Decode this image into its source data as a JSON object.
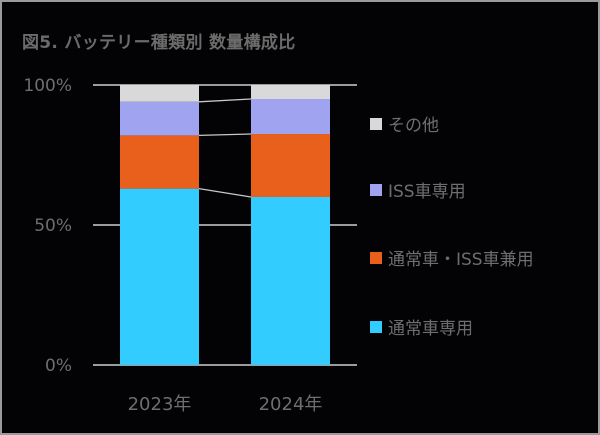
{
  "title": "図5. バッテリー種類別 数量構成比",
  "colors": {
    "background": "#030305",
    "axis_text": "#6e6e6e",
    "gridline": "#d0d0d0",
    "connector": "#c8c8c8"
  },
  "y_axis": {
    "ticks": [
      "0%",
      "50%",
      "100%"
    ]
  },
  "x_axis": {
    "ticks": [
      "2023年",
      "2024年"
    ]
  },
  "legend": [
    {
      "label": "その他",
      "color": "#d9d9d9"
    },
    {
      "label": "ISS車専用",
      "color": "#a0a3f0"
    },
    {
      "label": "通常車・ISS車兼用",
      "color": "#e8601c"
    },
    {
      "label": "通常車専用",
      "color": "#33ccff"
    }
  ],
  "chart_data": {
    "type": "bar",
    "stacked": true,
    "percent": true,
    "title": "図5. バッテリー種類別 数量構成比",
    "xlabel": "",
    "ylabel": "",
    "ylim": [
      0,
      100
    ],
    "y_ticks": [
      "0%",
      "50%",
      "100%"
    ],
    "categories": [
      "2023年",
      "2024年"
    ],
    "series": [
      {
        "name": "通常車専用",
        "color": "#33ccff",
        "values": [
          63,
          60
        ]
      },
      {
        "name": "通常車・ISS車兼用",
        "color": "#e8601c",
        "values": [
          19,
          22.5
        ]
      },
      {
        "name": "ISS車専用",
        "color": "#a0a3f0",
        "values": [
          12,
          12.5
        ]
      },
      {
        "name": "その他",
        "color": "#d9d9d9",
        "values": [
          6,
          5
        ]
      }
    ],
    "grid": true,
    "series_lines": true,
    "legend_position": "right"
  }
}
